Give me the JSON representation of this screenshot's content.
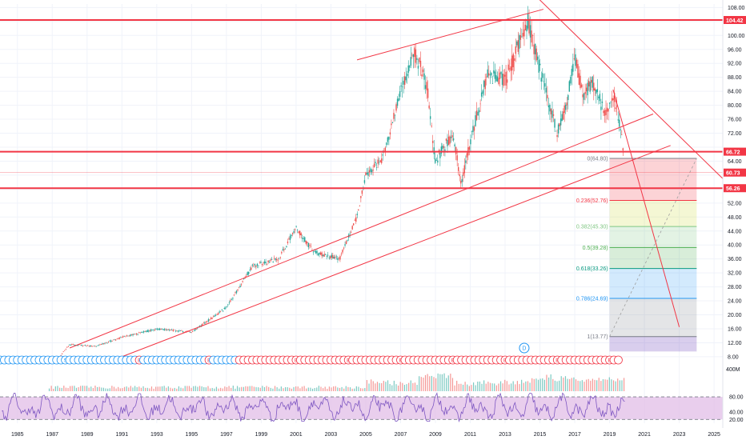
{
  "chart_data": {
    "type": "candlestick",
    "title": "",
    "xlabel": "",
    "ylabel": "",
    "x_range": [
      1984,
      2025.5
    ],
    "ylim": [
      5,
      109
    ],
    "y_ticks": [
      "8.00",
      "12.00",
      "16.00",
      "20.00",
      "24.00",
      "28.00",
      "32.00",
      "36.00",
      "40.00",
      "44.00",
      "48.00",
      "52.00",
      "56.00",
      "60.00",
      "64.00",
      "68.00",
      "72.00",
      "76.00",
      "80.00",
      "84.00",
      "88.00",
      "92.00",
      "96.00",
      "100.00",
      "104.00",
      "108.00"
    ],
    "x_ticks": [
      "1985",
      "1987",
      "1989",
      "1991",
      "1993",
      "1995",
      "1997",
      "1999",
      "2001",
      "2003",
      "2005",
      "2007",
      "2009",
      "2011",
      "2013",
      "2015",
      "2017",
      "2019",
      "2021",
      "2023",
      "2025"
    ],
    "grid": true,
    "price_path": [
      [
        1987.5,
        8.5
      ],
      [
        1988.0,
        11.5
      ],
      [
        1989.5,
        11.0
      ],
      [
        1991.0,
        13.5
      ],
      [
        1993.0,
        16.0
      ],
      [
        1995.0,
        15.0
      ],
      [
        1997.0,
        22.0
      ],
      [
        1998.5,
        34.0
      ],
      [
        2000.0,
        36.0
      ],
      [
        2001.0,
        45.0
      ],
      [
        2002.0,
        38.0
      ],
      [
        2003.5,
        36.0
      ],
      [
        2004.5,
        48.0
      ],
      [
        2005.0,
        60.0
      ],
      [
        2006.0,
        65.0
      ],
      [
        2007.0,
        84.0
      ],
      [
        2007.8,
        95.0
      ],
      [
        2008.5,
        86.0
      ],
      [
        2009.0,
        64.0
      ],
      [
        2010.0,
        72.0
      ],
      [
        2010.5,
        57.0
      ],
      [
        2011.0,
        70.0
      ],
      [
        2012.0,
        89.0
      ],
      [
        2013.0,
        87.0
      ],
      [
        2014.3,
        104.0
      ],
      [
        2015.0,
        90.0
      ],
      [
        2016.0,
        72.0
      ],
      [
        2016.5,
        80.0
      ],
      [
        2017.0,
        94.0
      ],
      [
        2017.5,
        82.0
      ],
      [
        2018.0,
        87.0
      ],
      [
        2018.7,
        78.0
      ],
      [
        2019.3,
        82.0
      ],
      [
        2019.8,
        67.0
      ]
    ],
    "horizontal_levels": [
      {
        "label": "104.42",
        "value": 104.42
      },
      {
        "label": "66.72",
        "value": 66.72
      },
      {
        "label": "56.26",
        "value": 56.26
      }
    ],
    "current_price_label": "60.73",
    "current_price": 60.73,
    "fibonacci": {
      "x_start": 2019.0,
      "x_end": 2024.0,
      "levels": [
        {
          "label": "0(64.80)",
          "ratio": 0,
          "value": 64.8,
          "color": "#787b86"
        },
        {
          "label": "0.236(52.76)",
          "ratio": 0.236,
          "value": 52.76,
          "color": "#f23645"
        },
        {
          "label": "0.382(45.30)",
          "ratio": 0.382,
          "value": 45.3,
          "color": "#81c784"
        },
        {
          "label": "0.5(39.28)",
          "ratio": 0.5,
          "value": 39.28,
          "color": "#4caf50"
        },
        {
          "label": "0.618(33.26)",
          "ratio": 0.618,
          "value": 33.26,
          "color": "#089981"
        },
        {
          "label": "0.786(24.69)",
          "ratio": 0.786,
          "value": 24.69,
          "color": "#2196f3"
        },
        {
          "label": "1(13.77)",
          "ratio": 1,
          "value": 13.77,
          "color": "#787b86"
        }
      ]
    },
    "trendlines": [
      {
        "from": [
          1988.0,
          10.5
        ],
        "to": [
          2021.5,
          77.5
        ]
      },
      {
        "from": [
          1991.0,
          8.0
        ],
        "to": [
          2022.5,
          68.5
        ]
      },
      {
        "from": [
          2004.5,
          93.0
        ],
        "to": [
          2015.2,
          107.5
        ]
      },
      {
        "from": [
          2014.0,
          115.0
        ],
        "to": [
          2025.5,
          59.0
        ]
      },
      {
        "from": [
          2019.2,
          84.5
        ],
        "to": [
          2023.0,
          16.5
        ]
      }
    ],
    "projection": {
      "from": [
        2019.0,
        13.77
      ],
      "to": [
        2024.0,
        64.8
      ]
    },
    "event_markers": {
      "letters": [
        "S",
        "E",
        "D"
      ],
      "highlight": "D"
    },
    "oscillator": {
      "ylim": [
        10,
        95
      ],
      "ticks": [
        "80.00",
        "40.00",
        "20.00"
      ],
      "band": [
        20,
        80
      ]
    },
    "volume_label": "400M",
    "colors": {
      "up": "#26a69a",
      "down": "#ef5350",
      "level": "#f23645",
      "osc_line": "#7e57c2",
      "osc_band": "#e1bee7"
    }
  }
}
